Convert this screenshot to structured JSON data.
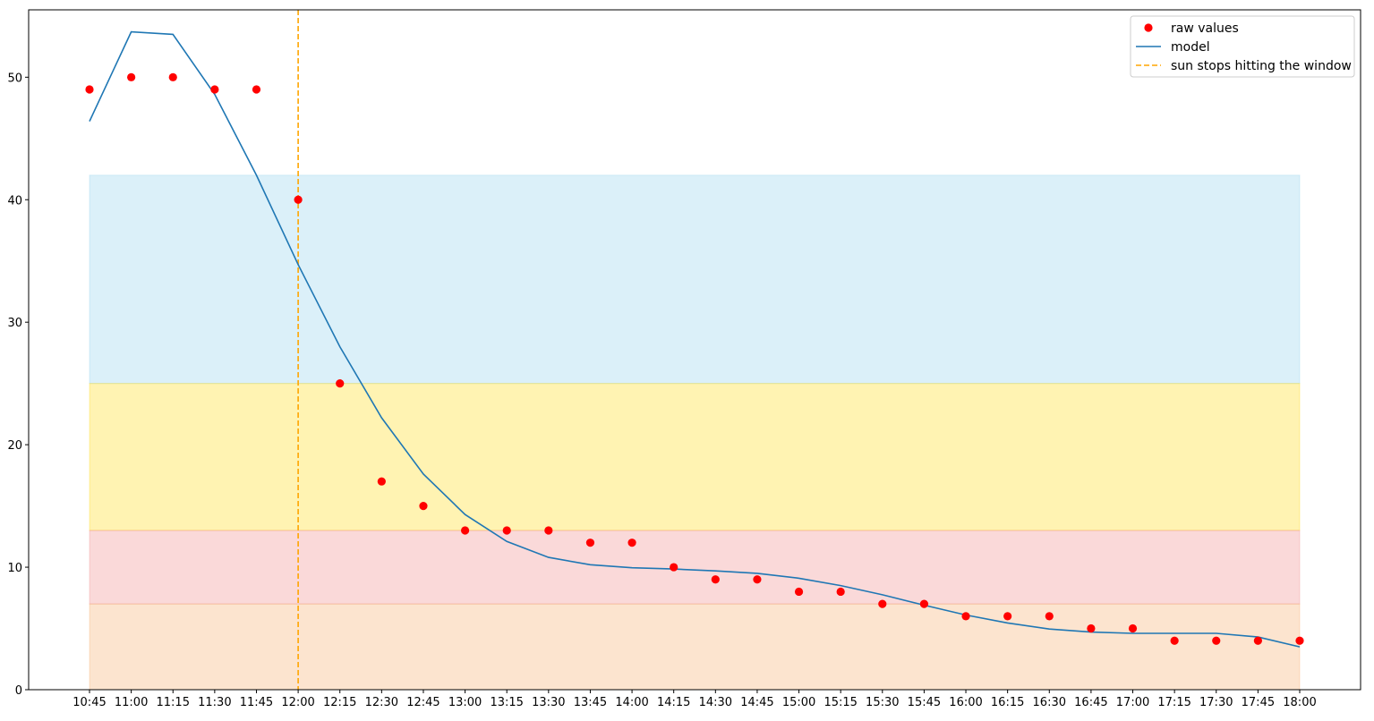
{
  "chart_data": {
    "type": "line",
    "x": [
      "10:45",
      "11:00",
      "11:15",
      "11:30",
      "11:45",
      "12:00",
      "12:15",
      "12:30",
      "12:45",
      "13:00",
      "13:15",
      "13:30",
      "13:45",
      "14:00",
      "14:15",
      "14:30",
      "14:45",
      "15:00",
      "15:15",
      "15:30",
      "15:45",
      "16:00",
      "16:15",
      "16:30",
      "16:45",
      "17:00",
      "17:15",
      "17:30",
      "17:45",
      "18:00"
    ],
    "series": [
      {
        "name": "raw values",
        "kind": "scatter",
        "color": "#ff0000",
        "values": [
          49,
          50,
          50,
          49,
          49,
          40,
          25,
          17,
          15,
          13,
          13,
          13,
          12,
          12,
          10,
          9,
          9,
          8,
          8,
          7,
          7,
          6,
          6,
          6,
          5,
          5,
          4,
          4,
          4,
          4
        ]
      },
      {
        "name": "model",
        "kind": "line",
        "color": "#1f77b4",
        "values": [
          46.4,
          53.7,
          53.5,
          48.6,
          42.0,
          34.7,
          28.0,
          22.2,
          17.6,
          14.3,
          12.1,
          10.8,
          10.2,
          9.95,
          9.85,
          9.7,
          9.5,
          9.1,
          8.5,
          7.75,
          6.9,
          6.1,
          5.45,
          4.95,
          4.7,
          4.6,
          4.6,
          4.6,
          4.3,
          3.5
        ]
      }
    ],
    "vline": {
      "name": "sun stops hitting the window",
      "x": "12:00",
      "color": "#ffa500",
      "style": "dashed"
    },
    "bands": [
      {
        "from": 25,
        "to": 42,
        "color": "#87ceeb"
      },
      {
        "from": 13,
        "to": 25,
        "color": "#ffd700"
      },
      {
        "from": 7,
        "to": 13,
        "color": "#f08080"
      },
      {
        "from": 0,
        "to": 7,
        "color": "#f4a460"
      }
    ],
    "yticks": [
      0,
      10,
      20,
      30,
      40,
      50
    ],
    "ylim": [
      0,
      55.5
    ],
    "title": "",
    "xlabel": "",
    "ylabel": "",
    "legend_position": "top-right",
    "grid": false
  }
}
